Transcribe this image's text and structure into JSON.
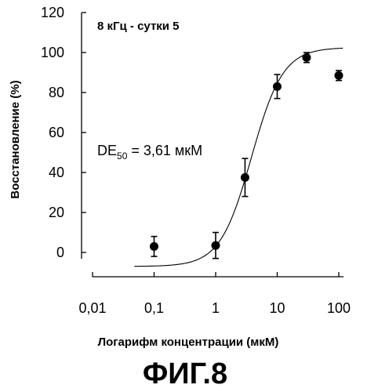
{
  "chart_data": {
    "type": "scatter",
    "title": "8 кГц - сутки 5",
    "xlabel": "Логарифм концентрации (мкМ)",
    "ylabel": "Восстановление (%)",
    "x_scale": "log",
    "xlim": [
      0.01,
      100
    ],
    "ylim": [
      0,
      120
    ],
    "x_ticks": [
      0.01,
      0.1,
      1,
      10,
      100
    ],
    "x_tick_labels": [
      "0,01",
      "0,1",
      "1",
      "10",
      "100"
    ],
    "y_ticks": [
      0,
      20,
      40,
      60,
      80,
      100,
      120
    ],
    "y_tick_labels": [
      "0",
      "20",
      "40",
      "60",
      "80",
      "100",
      "120"
    ],
    "grid": false,
    "series": [
      {
        "points": [
          {
            "x": 0.1,
            "y": 3,
            "err": 5
          },
          {
            "x": 1,
            "y": 3.5,
            "err": 6.5
          },
          {
            "x": 3,
            "y": 37.5,
            "err": 9.5
          },
          {
            "x": 10,
            "y": 83,
            "err": 6
          },
          {
            "x": 30,
            "y": 97.5,
            "err": 2.5
          },
          {
            "x": 100,
            "y": 88.5,
            "err": 2.5
          }
        ]
      }
    ],
    "fit_curve": {
      "type": "sigmoid",
      "ec50": 3.61,
      "bottom": -7,
      "top": 102.5,
      "hill": 1.7,
      "x_range": [
        0.045,
        110
      ]
    },
    "annotation": {
      "main": "DE",
      "sub": "50",
      "rest": " = 3,61 мкМ"
    }
  },
  "figure_label": "ФИГ.8"
}
